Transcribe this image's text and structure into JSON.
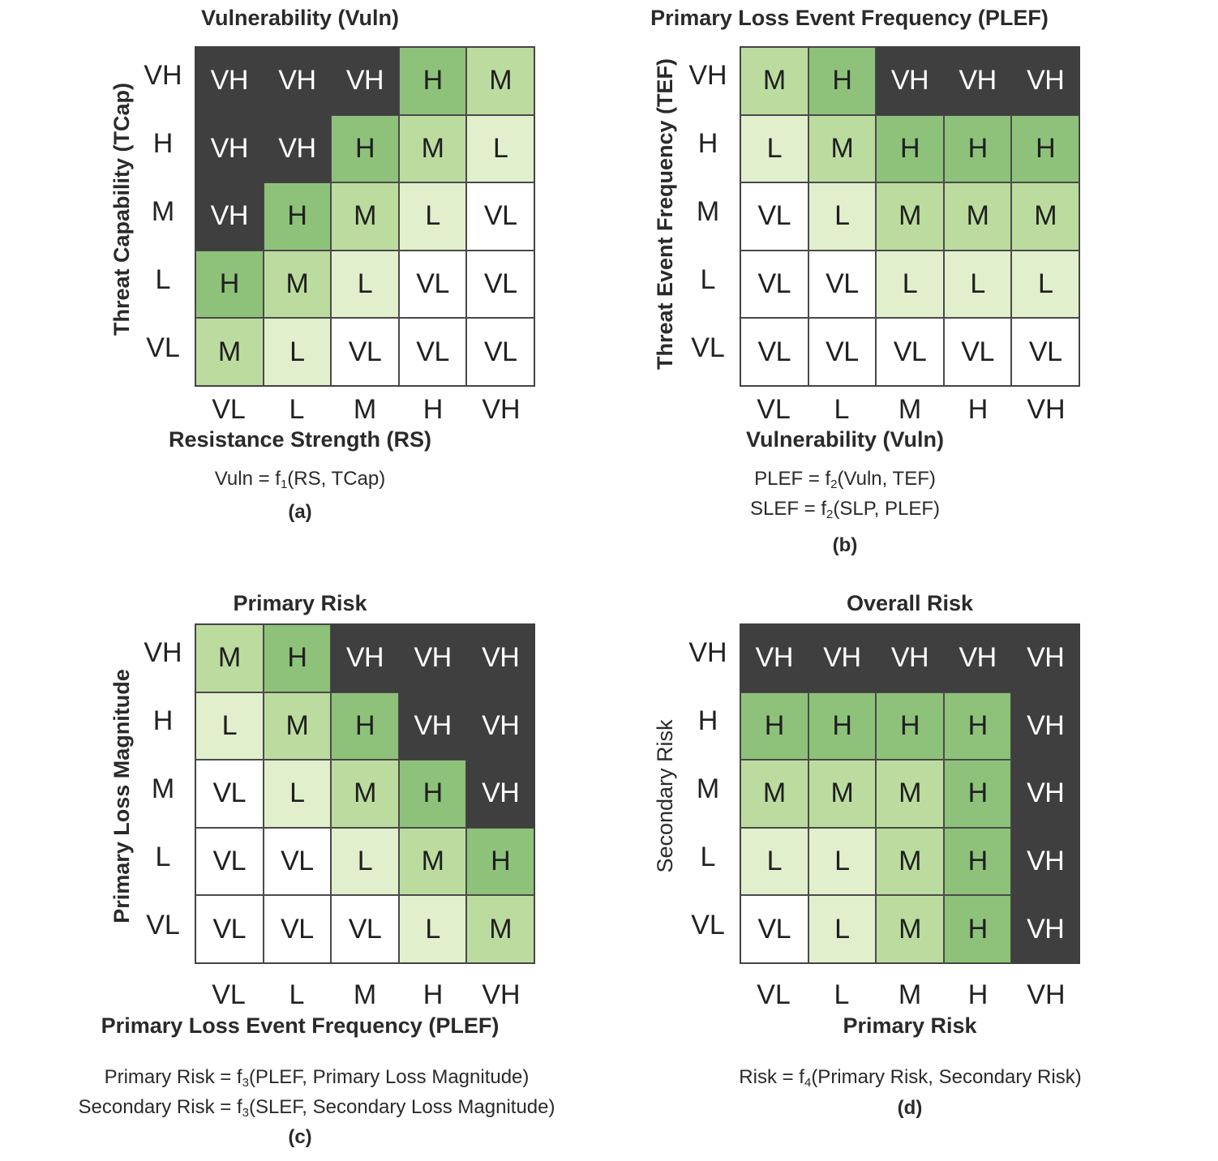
{
  "chart_data": [
    {
      "type": "heatmap",
      "id": "a",
      "title": "Vulnerability (Vuln)",
      "xlabel": "Resistance Strength (RS)",
      "ylabel": "Threat Capability (TCap)",
      "x_categories": [
        "VL",
        "L",
        "M",
        "H",
        "VH"
      ],
      "y_categories_top_to_bottom": [
        "VH",
        "H",
        "M",
        "L",
        "VL"
      ],
      "cells": [
        [
          "VH",
          "VH",
          "VH",
          "H",
          "M"
        ],
        [
          "VH",
          "VH",
          "H",
          "M",
          "L"
        ],
        [
          "VH",
          "H",
          "M",
          "L",
          "VL"
        ],
        [
          "H",
          "M",
          "L",
          "VL",
          "VL"
        ],
        [
          "M",
          "L",
          "VL",
          "VL",
          "VL"
        ]
      ],
      "formulas": [
        {
          "pre": "Vuln = f",
          "sub": "1",
          "post": "(RS, TCap)"
        }
      ],
      "caption": "(a)"
    },
    {
      "type": "heatmap",
      "id": "b",
      "title": "Primary Loss Event Frequency (PLEF)",
      "xlabel": "Vulnerability (Vuln)",
      "ylabel": "Threat Event Frequency (TEF)",
      "x_categories": [
        "VL",
        "L",
        "M",
        "H",
        "VH"
      ],
      "y_categories_top_to_bottom": [
        "VH",
        "H",
        "M",
        "L",
        "VL"
      ],
      "cells": [
        [
          "M",
          "H",
          "VH",
          "VH",
          "VH"
        ],
        [
          "L",
          "M",
          "H",
          "H",
          "H"
        ],
        [
          "VL",
          "L",
          "M",
          "M",
          "M"
        ],
        [
          "VL",
          "VL",
          "L",
          "L",
          "L"
        ],
        [
          "VL",
          "VL",
          "VL",
          "VL",
          "VL"
        ]
      ],
      "formulas": [
        {
          "pre": "PLEF = f",
          "sub": "2",
          "post": "(Vuln, TEF)"
        },
        {
          "pre": "SLEF = f",
          "sub": "2",
          "post": "(SLP, PLEF)"
        }
      ],
      "caption": "(b)"
    },
    {
      "type": "heatmap",
      "id": "c",
      "title": "Primary Risk",
      "xlabel": "Primary Loss Event Frequency (PLEF)",
      "ylabel": "Primary Loss Magnitude",
      "x_categories": [
        "VL",
        "L",
        "M",
        "H",
        "VH"
      ],
      "y_categories_top_to_bottom": [
        "VH",
        "H",
        "M",
        "L",
        "VL"
      ],
      "cells": [
        [
          "M",
          "H",
          "VH",
          "VH",
          "VH"
        ],
        [
          "L",
          "M",
          "H",
          "VH",
          "VH"
        ],
        [
          "VL",
          "L",
          "M",
          "H",
          "VH"
        ],
        [
          "VL",
          "VL",
          "L",
          "M",
          "H"
        ],
        [
          "VL",
          "VL",
          "VL",
          "L",
          "M"
        ]
      ],
      "formulas": [
        {
          "pre": "Primary Risk = f",
          "sub": "3",
          "post": "(PLEF, Primary Loss Magnitude)"
        },
        {
          "pre": "Secondary Risk = f",
          "sub": "3",
          "post": "(SLEF, Secondary Loss Magnitude)"
        }
      ],
      "caption": "(c)"
    },
    {
      "type": "heatmap",
      "id": "d",
      "title": "Overall Risk",
      "xlabel": "Primary Risk",
      "ylabel": "Secondary Risk",
      "x_categories": [
        "VL",
        "L",
        "M",
        "H",
        "VH"
      ],
      "y_categories_top_to_bottom": [
        "VH",
        "H",
        "M",
        "L",
        "VL"
      ],
      "cells": [
        [
          "VH",
          "VH",
          "VH",
          "VH",
          "VH"
        ],
        [
          "H",
          "H",
          "H",
          "H",
          "VH"
        ],
        [
          "M",
          "M",
          "M",
          "H",
          "VH"
        ],
        [
          "L",
          "L",
          "M",
          "H",
          "VH"
        ],
        [
          "VL",
          "L",
          "M",
          "H",
          "VH"
        ]
      ],
      "formulas": [
        {
          "pre": "Risk = f",
          "sub": "4",
          "post": "(Primary Risk, Secondary Risk)"
        }
      ],
      "caption": "(d)"
    }
  ],
  "level_colors": {
    "VH": "#3f3f3f",
    "H": "#8ec27a",
    "M": "#bcdc9f",
    "L": "#e2efcd",
    "VL": "#ffffff"
  }
}
